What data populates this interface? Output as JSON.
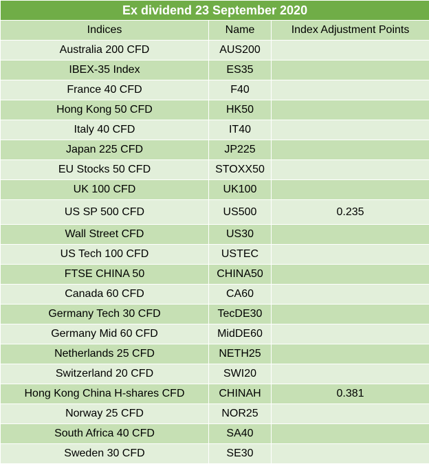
{
  "title": "Ex dividend 23 September 2020",
  "columns": [
    "Indices",
    "Name",
    "Index Adjustment Points"
  ],
  "rows": [
    {
      "index": "Australia 200 CFD",
      "name": "AUS200",
      "points": ""
    },
    {
      "index": "IBEX-35 Index",
      "name": "ES35",
      "points": ""
    },
    {
      "index": "France 40 CFD",
      "name": "F40",
      "points": ""
    },
    {
      "index": "Hong Kong 50 CFD",
      "name": "HK50",
      "points": ""
    },
    {
      "index": "Italy 40 CFD",
      "name": "IT40",
      "points": ""
    },
    {
      "index": "Japan 225 CFD",
      "name": "JP225",
      "points": ""
    },
    {
      "index": "EU Stocks 50 CFD",
      "name": "STOXX50",
      "points": ""
    },
    {
      "index": "UK 100 CFD",
      "name": "UK100",
      "points": ""
    },
    {
      "index": "US SP 500 CFD",
      "name": "US500",
      "points": "0.235"
    },
    {
      "index": "Wall Street CFD",
      "name": "US30",
      "points": ""
    },
    {
      "index": "US Tech 100 CFD",
      "name": "USTEC",
      "points": ""
    },
    {
      "index": "FTSE CHINA 50",
      "name": "CHINA50",
      "points": ""
    },
    {
      "index": "Canada 60 CFD",
      "name": "CA60",
      "points": ""
    },
    {
      "index": "Germany Tech 30 CFD",
      "name": "TecDE30",
      "points": ""
    },
    {
      "index": "Germany Mid 60 CFD",
      "name": "MidDE60",
      "points": ""
    },
    {
      "index": "Netherlands 25 CFD",
      "name": "NETH25",
      "points": ""
    },
    {
      "index": "Switzerland 20 CFD",
      "name": "SWI20",
      "points": ""
    },
    {
      "index": "Hong Kong China H-shares CFD",
      "name": "CHINAH",
      "points": "0.381"
    },
    {
      "index": "Norway 25 CFD",
      "name": "NOR25",
      "points": ""
    },
    {
      "index": "South Africa 40 CFD",
      "name": "SA40",
      "points": ""
    },
    {
      "index": "Sweden 30 CFD",
      "name": "SE30",
      "points": ""
    }
  ],
  "colors": {
    "title_bg": "#70ad47",
    "band_light": "#e2efda",
    "band_dark": "#c6e0b4"
  }
}
